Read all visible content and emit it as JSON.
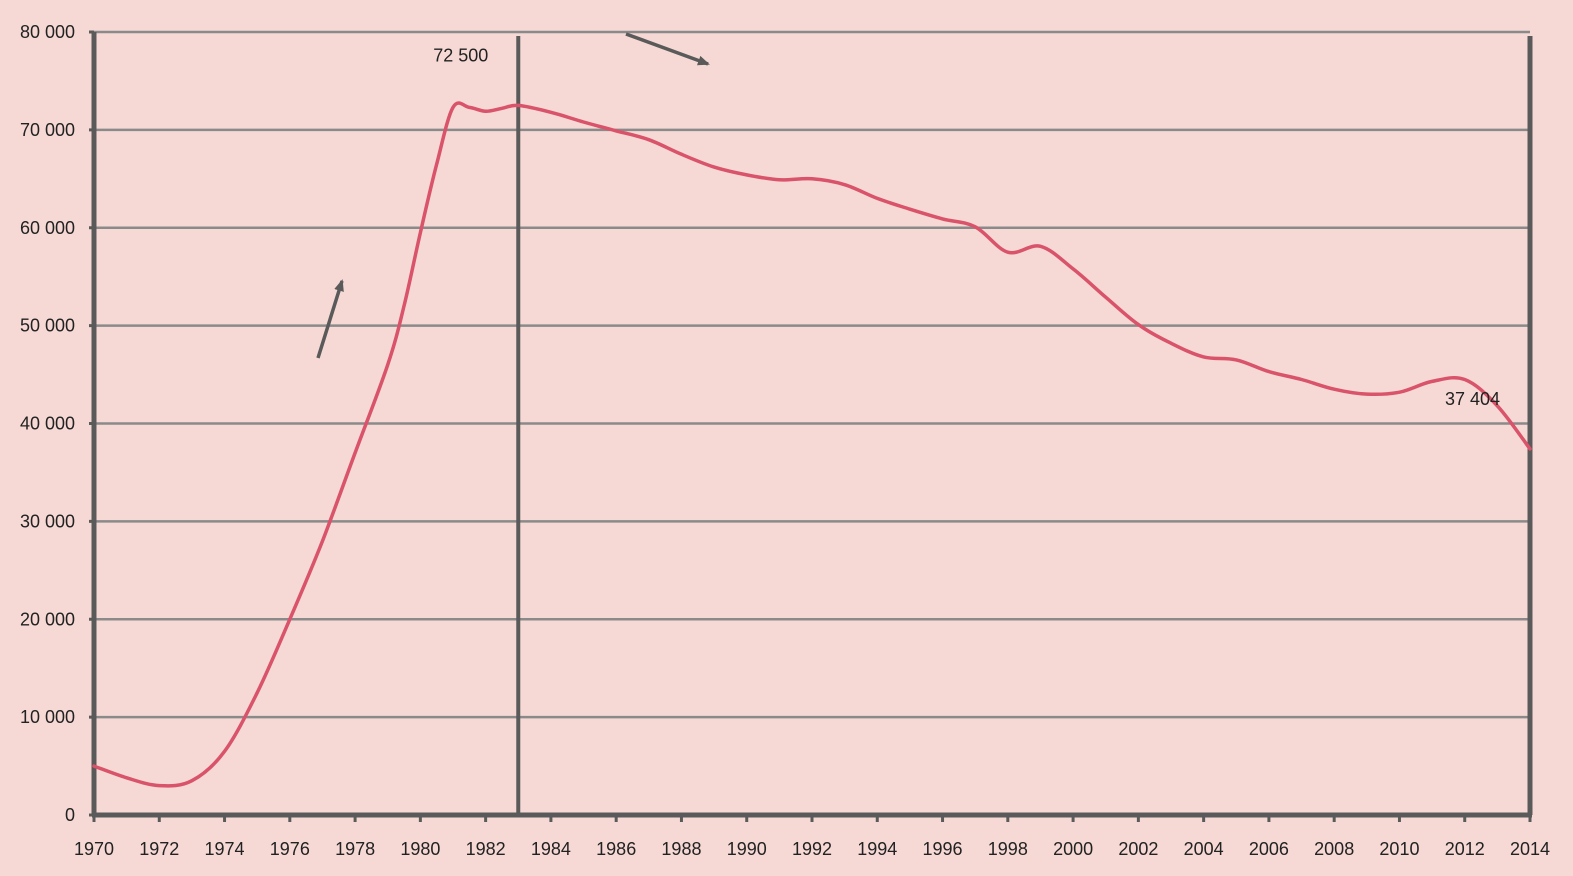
{
  "chart_data": {
    "type": "line",
    "title": "",
    "xlabel": "",
    "ylabel": "",
    "xlim": [
      1970,
      2014
    ],
    "ylim": [
      0,
      80000
    ],
    "grid": true,
    "x_ticks": [
      "1970",
      "1972",
      "1974",
      "1976",
      "1978",
      "1980",
      "1982",
      "1984",
      "1986",
      "1988",
      "1990",
      "1992",
      "1994",
      "1996",
      "1998",
      "2000",
      "2002",
      "2004",
      "2006",
      "2008",
      "2010",
      "2012",
      "2014"
    ],
    "y_ticks": [
      "0",
      "10 000",
      "20 000",
      "30 000",
      "40 000",
      "50 000",
      "60 000",
      "70 000",
      "80 000"
    ],
    "series": [
      {
        "color": "#d9536a",
        "x": [
          1970,
          1971,
          1972,
          1973,
          1974,
          1975,
          1976,
          1977,
          1978,
          1979,
          1979.5,
          1980,
          1980.5,
          1981,
          1981.5,
          1982,
          1982.5,
          1983,
          1984,
          1985,
          1986,
          1987,
          1988,
          1989,
          1990,
          1991,
          1992,
          1993,
          1994,
          1995,
          1996,
          1997,
          1998,
          1999,
          2000,
          2001,
          2002,
          2003,
          2004,
          2005,
          2006,
          2007,
          2008,
          2009,
          2010,
          2011,
          2012,
          2013,
          2014
        ],
        "y": [
          5000,
          3800,
          3000,
          3500,
          6500,
          12500,
          20000,
          28000,
          37000,
          46000,
          52000,
          59500,
          66500,
          72300,
          72300,
          71900,
          72200,
          72500,
          71800,
          70800,
          69900,
          69000,
          67500,
          66200,
          65400,
          64900,
          65000,
          64400,
          63000,
          61900,
          60900,
          60100,
          57500,
          58100,
          55800,
          52900,
          50100,
          48200,
          46800,
          46500,
          45300,
          44500,
          43500,
          43000,
          43200,
          44300,
          44500,
          41800,
          37404
        ]
      }
    ],
    "reference_line": {
      "x": 1983
    },
    "annotations": [
      {
        "text": "72 500",
        "x": 1983,
        "y": 72500
      },
      {
        "text": "37 404",
        "x": 2014,
        "y": 37404
      }
    ],
    "colors": {
      "background": "#f6d9d5",
      "line": "#d9536a",
      "axis": "#5a5a5a",
      "grid": "#8a8a8a",
      "arrow": "#5a5a5a"
    }
  }
}
